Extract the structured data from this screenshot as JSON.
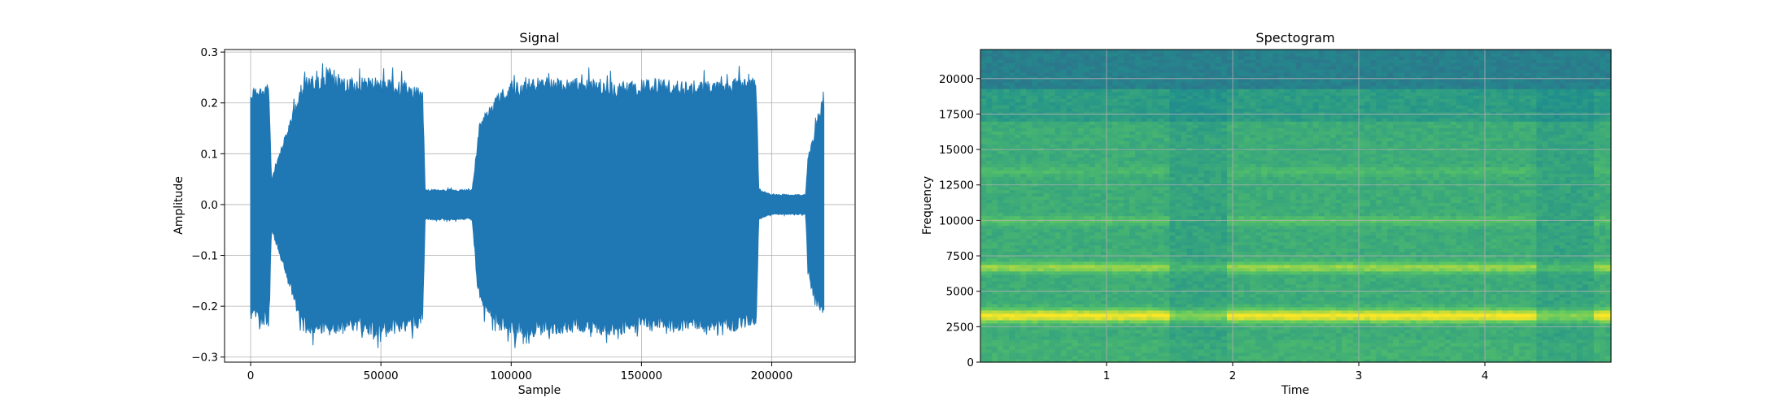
{
  "chart_data": [
    {
      "type": "line",
      "title": "Signal",
      "xlabel": "Sample",
      "ylabel": "Amplitude",
      "xlim": [
        -10000,
        232000
      ],
      "ylim": [
        -0.31,
        0.305
      ],
      "x_ticks": [
        0,
        50000,
        100000,
        150000,
        200000
      ],
      "x_tick_labels": [
        "0",
        "50000",
        "100000",
        "150000",
        "200000"
      ],
      "y_ticks": [
        0.3,
        0.2,
        0.1,
        0.0,
        -0.1,
        -0.2,
        -0.3
      ],
      "y_tick_labels": [
        "0.3",
        "0.2",
        "0.1",
        "0.0",
        "−0.1",
        "−0.2",
        "−0.3"
      ],
      "grid": true,
      "color": "#1f77b4",
      "series": [
        {
          "x": [
            0,
            7000,
            8000,
            20000,
            30000,
            40000,
            50000,
            60000,
            66000,
            67000,
            75000,
            85000,
            87000,
            88000,
            95000,
            100000,
            110000,
            125000,
            140000,
            155000,
            170000,
            185000,
            194000,
            195000,
            200000,
            205000,
            213000,
            214000,
            216000,
            219000,
            220000
          ],
          "y_upper": [
            0.23,
            0.24,
            0.05,
            0.25,
            0.26,
            0.25,
            0.25,
            0.24,
            0.23,
            0.03,
            0.03,
            0.03,
            0.12,
            0.17,
            0.22,
            0.24,
            0.25,
            0.25,
            0.24,
            0.25,
            0.24,
            0.25,
            0.25,
            0.03,
            0.02,
            0.02,
            0.02,
            0.1,
            0.14,
            0.2,
            0.22
          ],
          "y_lower": [
            -0.23,
            -0.24,
            -0.05,
            -0.25,
            -0.26,
            -0.25,
            -0.26,
            -0.25,
            -0.24,
            -0.03,
            -0.03,
            -0.03,
            -0.16,
            -0.2,
            -0.24,
            -0.26,
            -0.26,
            -0.25,
            -0.26,
            -0.25,
            -0.25,
            -0.25,
            -0.24,
            -0.03,
            -0.02,
            -0.02,
            -0.02,
            -0.14,
            -0.19,
            -0.22,
            -0.22
          ]
        }
      ]
    },
    {
      "type": "heatmap",
      "title": "Spectogram",
      "xlabel": "Time",
      "ylabel": "Frequency",
      "xlim": [
        0.0,
        5.0
      ],
      "ylim": [
        0,
        22050
      ],
      "x_ticks": [
        1,
        2,
        3,
        4
      ],
      "x_tick_labels": [
        "1",
        "2",
        "3",
        "4"
      ],
      "y_ticks": [
        0,
        2500,
        5000,
        7500,
        10000,
        12500,
        15000,
        17500,
        20000
      ],
      "y_tick_labels": [
        "0",
        "2500",
        "5000",
        "7500",
        "10000",
        "12500",
        "15000",
        "17500",
        "20000"
      ],
      "grid": true,
      "colormap": "viridis",
      "loud_segments": [
        [
          0.0,
          1.5
        ],
        [
          1.96,
          4.43
        ],
        [
          4.85,
          5.0
        ]
      ],
      "quiet_segments": [
        [
          1.5,
          1.96
        ],
        [
          4.43,
          4.85
        ]
      ],
      "bands_hz": [
        {
          "center": 3300,
          "width": 450,
          "level_loud": 1.0,
          "level_quiet": 0.82
        },
        {
          "center": 6700,
          "width": 350,
          "level_loud": 0.85,
          "level_quiet": 0.68
        },
        {
          "center": 10000,
          "width": 300,
          "level_loud": 0.72,
          "level_quiet": 0.55
        },
        {
          "center": 13500,
          "width": 300,
          "level_loud": 0.68,
          "level_quiet": 0.55
        }
      ],
      "high_frequency_dark_band_hz": [
        19200,
        22050
      ]
    }
  ]
}
